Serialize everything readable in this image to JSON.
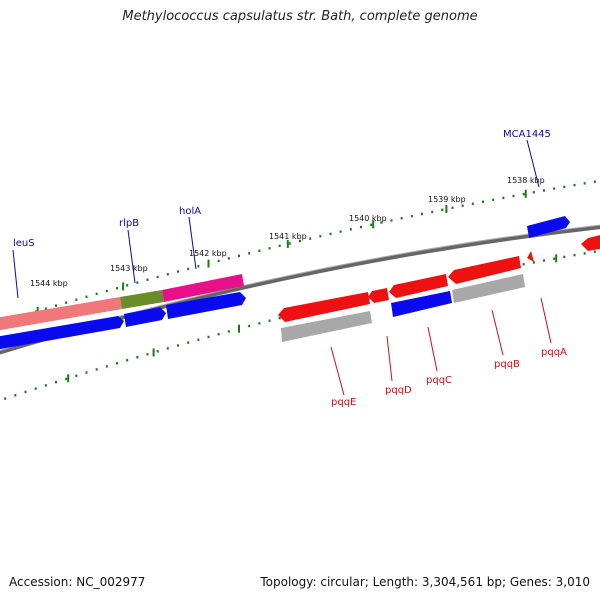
{
  "map": {
    "title": "Methylococcus capsulatus str. Bath, complete genome",
    "accession": "Accession: NC_002977",
    "summary": "Topology: circular; Length: 3,304,561 bp; Genes: 3,010"
  },
  "colors": {
    "backbone": "#808080",
    "ticks": "#1a7a1a",
    "forward_label": "#0a0aa8",
    "reverse_label": "#cc1111",
    "blue": "#0a0af0",
    "red": "#ee1111",
    "pink": "#f07878",
    "olive": "#6a8c2a",
    "magenta": "#e8108a",
    "gray": "#a8a8a8"
  },
  "scale_labels": [
    "1544 kbp",
    "1543 kbp",
    "1542 kbp",
    "1541 kbp",
    "1540 kbp",
    "1539 kbp",
    "1538 kbp"
  ],
  "forward_genes": [
    "leuS",
    "rlpB",
    "holA",
    "MCA1445"
  ],
  "reverse_genes": [
    "pqqE",
    "pqqD",
    "pqqC",
    "pqqB",
    "pqqA"
  ]
}
